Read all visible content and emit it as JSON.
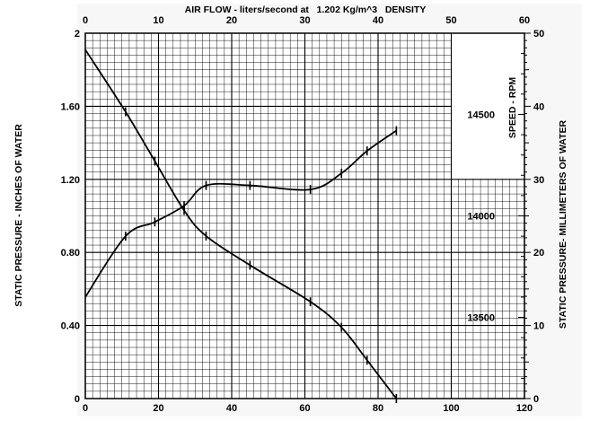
{
  "chart_data": {
    "type": "line",
    "title": "AIR FLOW - liters/second at   1.202 Kg/m^3   DENSITY",
    "xlabel_bottom": "",
    "xlabel_top": "AIR FLOW - liters/second at   1.202 Kg/m^3   DENSITY",
    "ylabel_left": "STATIC PRESSURE - INCHES OF WATER",
    "ylabel_right": "STATIC PRESSURE- MILLIMETERS OF WATER",
    "ylabel_speed": "SPEED - RPM",
    "x_bottom": {
      "range": [
        0,
        120
      ],
      "ticks": [
        "0",
        "20",
        "40",
        "60",
        "80",
        "100",
        "120"
      ]
    },
    "x_top": {
      "range": [
        0,
        60
      ],
      "ticks": [
        "0",
        "10",
        "20",
        "30",
        "40",
        "50",
        "60"
      ]
    },
    "y_left": {
      "range": [
        0,
        2
      ],
      "ticks": [
        "0",
        "0.40",
        "0.80",
        "1.20",
        "1.60",
        "2"
      ]
    },
    "y_right": {
      "range": [
        0,
        50
      ],
      "ticks": [
        "0",
        "10",
        "20",
        "30",
        "40",
        "50"
      ]
    },
    "y_speed": {
      "range": [
        13100,
        14900
      ],
      "ticks": [
        "13500",
        "14000",
        "14500"
      ]
    },
    "grid": true,
    "series": [
      {
        "axis": "pressure",
        "x": [
          0,
          11,
          19,
          27,
          33,
          45,
          61.5,
          70,
          77,
          85
        ],
        "y": [
          1.91,
          1.57,
          1.3,
          1.03,
          0.89,
          0.73,
          0.53,
          0.39,
          0.21,
          0.0
        ]
      },
      {
        "axis": "speed",
        "x": [
          0,
          11,
          19,
          27,
          33,
          45,
          61.5,
          70,
          77,
          85
        ],
        "y": [
          13600,
          13900,
          13970,
          14050,
          14150,
          14150,
          14130,
          14210,
          14320,
          14420
        ]
      }
    ]
  }
}
